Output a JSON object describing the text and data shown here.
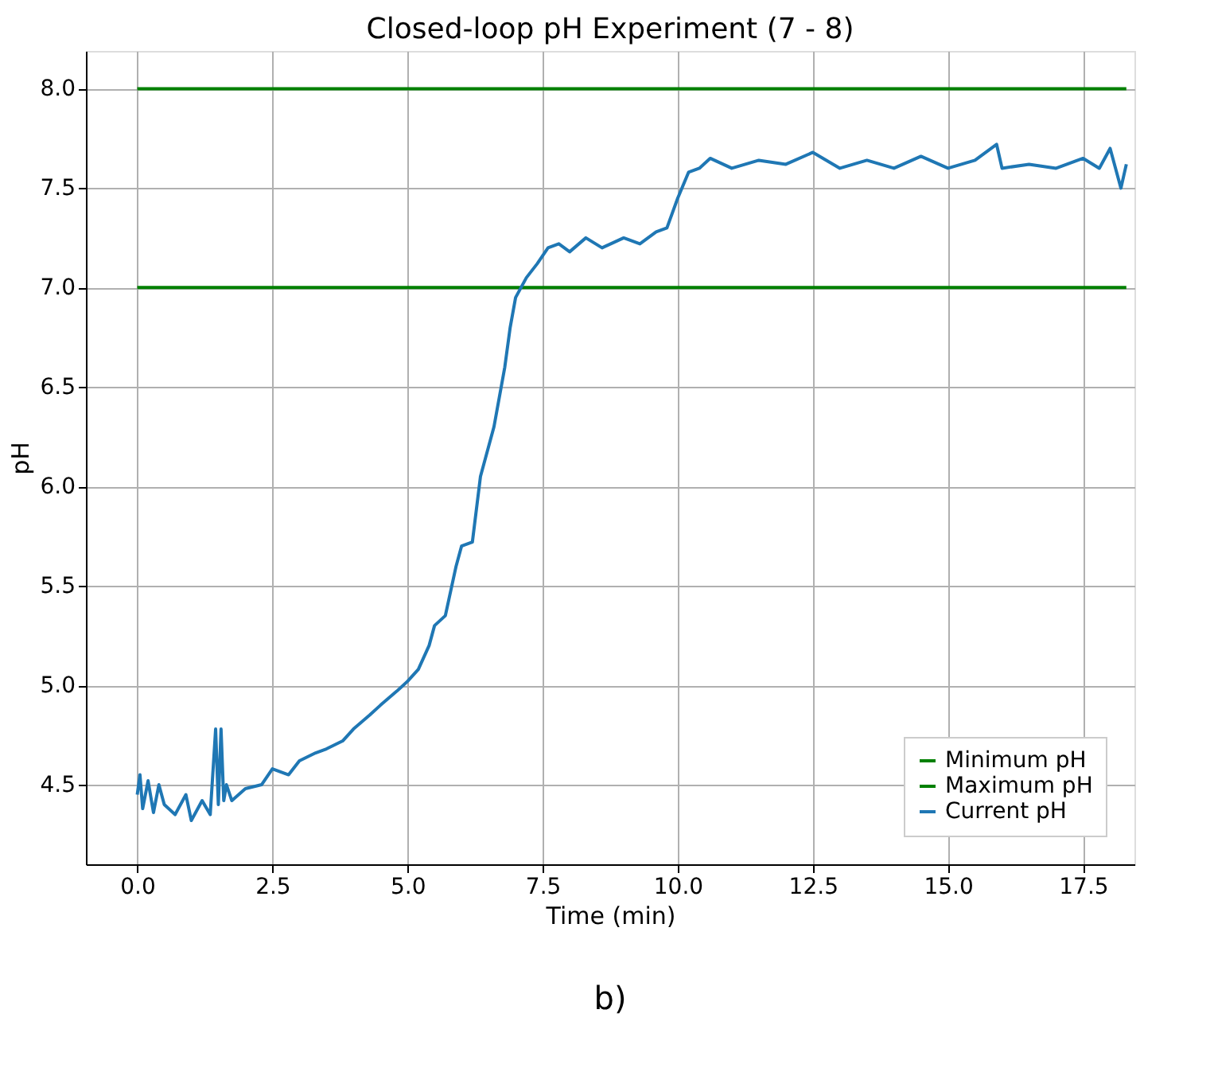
{
  "chart_data": {
    "type": "line",
    "title": "Closed-loop pH Experiment (7 - 8)",
    "xlabel": "Time (min)",
    "ylabel": "pH",
    "xlim": [
      -0.95,
      18.45
    ],
    "ylim": [
      4.1,
      8.19
    ],
    "xticks": [
      {
        "value": 0,
        "label": "0.0"
      },
      2.5,
      {
        "value": 5,
        "label": "5.0"
      },
      7.5,
      {
        "value": 10,
        "label": "10.0"
      },
      12.5,
      {
        "value": 15,
        "label": "15.0"
      },
      17.5
    ],
    "yticks": [
      4.5,
      {
        "value": 5,
        "label": "5.0"
      },
      5.5,
      {
        "value": 6,
        "label": "6.0"
      },
      6.5,
      {
        "value": 7,
        "label": "7.0"
      },
      7.5,
      {
        "value": 8,
        "label": "8.0"
      }
    ],
    "grid": true,
    "legend": "bottom right",
    "annotations": [
      "b)"
    ],
    "series": [
      {
        "name": "Minimum pH",
        "color": "#008000",
        "x": [
          0,
          18.3
        ],
        "values": [
          7.0,
          7.0
        ]
      },
      {
        "name": "Maximum pH",
        "color": "#008000",
        "x": [
          0,
          18.3
        ],
        "values": [
          8.0,
          8.0
        ]
      },
      {
        "name": "Current pH",
        "color": "#1f77b4",
        "x": [
          0,
          0.05,
          0.1,
          0.2,
          0.3,
          0.4,
          0.5,
          0.7,
          0.9,
          1.0,
          1.2,
          1.35,
          1.42,
          1.45,
          1.5,
          1.55,
          1.6,
          1.65,
          1.75,
          2.0,
          2.3,
          2.5,
          2.8,
          3.0,
          3.3,
          3.5,
          3.8,
          4.0,
          4.3,
          4.5,
          4.8,
          5.0,
          5.2,
          5.4,
          5.5,
          5.7,
          5.9,
          6.0,
          6.2,
          6.35,
          6.5,
          6.6,
          6.8,
          6.9,
          7.0,
          7.2,
          7.4,
          7.6,
          7.8,
          8.0,
          8.3,
          8.6,
          9.0,
          9.3,
          9.6,
          9.8,
          10.0,
          10.2,
          10.4,
          10.6,
          11.0,
          11.5,
          12.0,
          12.5,
          13.0,
          13.5,
          14.0,
          14.5,
          15.0,
          15.5,
          15.9,
          16.0,
          16.5,
          17.0,
          17.5,
          17.8,
          18.0,
          18.2,
          18.3
        ],
        "values": [
          4.45,
          4.55,
          4.38,
          4.52,
          4.36,
          4.5,
          4.4,
          4.35,
          4.45,
          4.32,
          4.42,
          4.35,
          4.65,
          4.78,
          4.4,
          4.78,
          4.42,
          4.5,
          4.42,
          4.48,
          4.5,
          4.58,
          4.55,
          4.62,
          4.66,
          4.68,
          4.72,
          4.78,
          4.85,
          4.9,
          4.97,
          5.02,
          5.08,
          5.2,
          5.3,
          5.35,
          5.6,
          5.7,
          5.72,
          6.05,
          6.2,
          6.3,
          6.6,
          6.8,
          6.95,
          7.05,
          7.12,
          7.2,
          7.22,
          7.18,
          7.25,
          7.2,
          7.25,
          7.22,
          7.28,
          7.3,
          7.45,
          7.58,
          7.6,
          7.65,
          7.6,
          7.64,
          7.62,
          7.68,
          7.6,
          7.64,
          7.6,
          7.66,
          7.6,
          7.64,
          7.72,
          7.6,
          7.62,
          7.6,
          7.65,
          7.6,
          7.7,
          7.5,
          7.62
        ]
      }
    ]
  }
}
